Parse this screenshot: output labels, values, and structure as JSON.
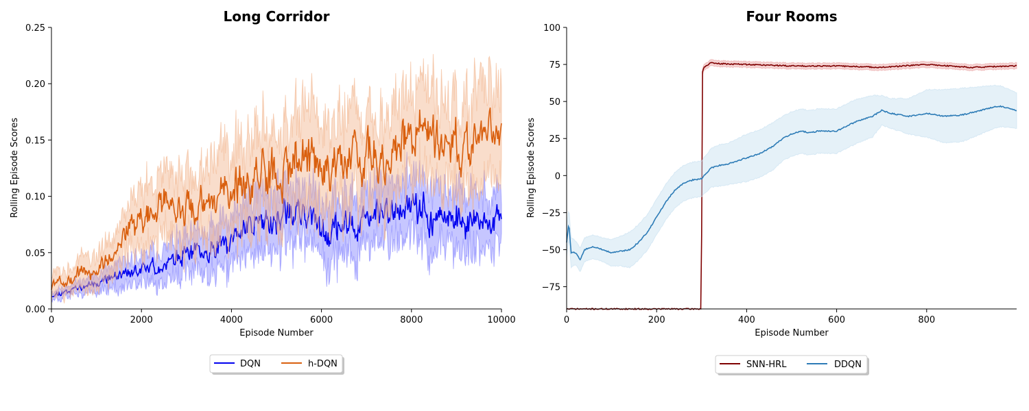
{
  "chart_data": [
    {
      "type": "line",
      "title": "Long Corridor",
      "xlabel": "Episode Number",
      "ylabel": "Rolling Episode Scores",
      "xlim": [
        0,
        10000
      ],
      "ylim": [
        0,
        0.25
      ],
      "x_ticks": [
        "0",
        "2000",
        "4000",
        "6000",
        "8000",
        "10000"
      ],
      "y_ticks": [
        "0.00",
        "0.05",
        "0.10",
        "0.15",
        "0.20",
        "0.25"
      ],
      "legend": "below",
      "grid": false,
      "x": [
        0,
        500,
        1000,
        1500,
        2000,
        2500,
        3000,
        3500,
        4000,
        4500,
        5000,
        5500,
        6000,
        6500,
        7000,
        7500,
        8000,
        8500,
        9000,
        9500,
        10000
      ],
      "series": [
        {
          "name": "DQN",
          "color": "#0000ee",
          "band_color": "#8080ff",
          "values": [
            0.012,
            0.018,
            0.024,
            0.03,
            0.034,
            0.04,
            0.048,
            0.05,
            0.06,
            0.08,
            0.08,
            0.085,
            0.072,
            0.07,
            0.08,
            0.085,
            0.095,
            0.08,
            0.08,
            0.075,
            0.08
          ],
          "spread": [
            0.004,
            0.006,
            0.008,
            0.012,
            0.014,
            0.016,
            0.02,
            0.022,
            0.024,
            0.028,
            0.03,
            0.03,
            0.03,
            0.03,
            0.03,
            0.03,
            0.03,
            0.03,
            0.03,
            0.03,
            0.03
          ]
        },
        {
          "name": "h-DQN",
          "color": "#d95f0e",
          "band_color": "#f2b48c",
          "values": [
            0.02,
            0.03,
            0.03,
            0.06,
            0.08,
            0.095,
            0.09,
            0.1,
            0.11,
            0.12,
            0.12,
            0.14,
            0.125,
            0.13,
            0.135,
            0.13,
            0.16,
            0.15,
            0.145,
            0.155,
            0.16
          ],
          "spread": [
            0.01,
            0.014,
            0.016,
            0.02,
            0.03,
            0.032,
            0.035,
            0.038,
            0.04,
            0.045,
            0.045,
            0.045,
            0.045,
            0.045,
            0.045,
            0.045,
            0.045,
            0.045,
            0.045,
            0.045,
            0.045
          ]
        }
      ]
    },
    {
      "type": "line",
      "title": "Four Rooms",
      "xlabel": "Episode Number",
      "ylabel": "Rolling Episode Scores",
      "xlim": [
        0,
        1000
      ],
      "ylim": [
        -90,
        100
      ],
      "x_ticks": [
        "0",
        "200",
        "400",
        "600",
        "800"
      ],
      "y_ticks": [
        "−75",
        "−50",
        "−25",
        "0",
        "25",
        "50",
        "75",
        "100"
      ],
      "legend": "below",
      "grid": false,
      "series": [
        {
          "name": "SNN-HRL",
          "color": "#7f0000",
          "band_color": "#e8a0a0",
          "x": [
            0,
            295,
            298,
            300,
            302,
            305,
            310,
            320,
            340,
            400,
            500,
            600,
            700,
            800,
            900,
            1000
          ],
          "values": [
            -90,
            -90,
            -90,
            -40,
            70,
            73,
            74,
            76,
            75.5,
            75,
            74,
            74,
            73,
            75,
            73,
            74
          ],
          "spread": [
            0,
            0,
            0,
            0,
            2,
            2,
            2,
            2,
            2,
            2,
            2,
            2,
            2,
            2,
            2,
            2
          ]
        },
        {
          "name": "DDQN",
          "color": "#2c7bb6",
          "band_color": "#c6dff0",
          "x": [
            0,
            5,
            10,
            20,
            30,
            40,
            60,
            80,
            100,
            120,
            140,
            160,
            180,
            200,
            220,
            240,
            260,
            280,
            300,
            320,
            340,
            360,
            380,
            400,
            430,
            460,
            480,
            500,
            520,
            540,
            560,
            600,
            640,
            680,
            700,
            720,
            760,
            800,
            840,
            880,
            920,
            960,
            1000
          ],
          "values": [
            -45,
            -32,
            -52,
            -52,
            -57,
            -50,
            -48,
            -50,
            -52,
            -51,
            -50,
            -45,
            -38,
            -28,
            -18,
            -10,
            -5,
            -3,
            -2,
            5,
            7,
            8,
            10,
            12,
            15,
            20,
            25,
            28,
            30,
            29,
            30,
            30,
            36,
            40,
            44,
            42,
            40,
            42,
            40,
            41,
            44,
            47,
            44
          ],
          "spread": [
            10,
            10,
            10,
            8,
            8,
            8,
            8,
            8,
            9,
            10,
            12,
            12,
            12,
            12,
            12,
            12,
            12,
            12,
            12,
            13,
            14,
            14,
            15,
            16,
            16,
            16,
            15,
            15,
            15,
            15,
            15,
            15,
            15,
            14,
            10,
            10,
            12,
            16,
            18,
            18,
            16,
            14,
            12
          ]
        }
      ]
    }
  ]
}
